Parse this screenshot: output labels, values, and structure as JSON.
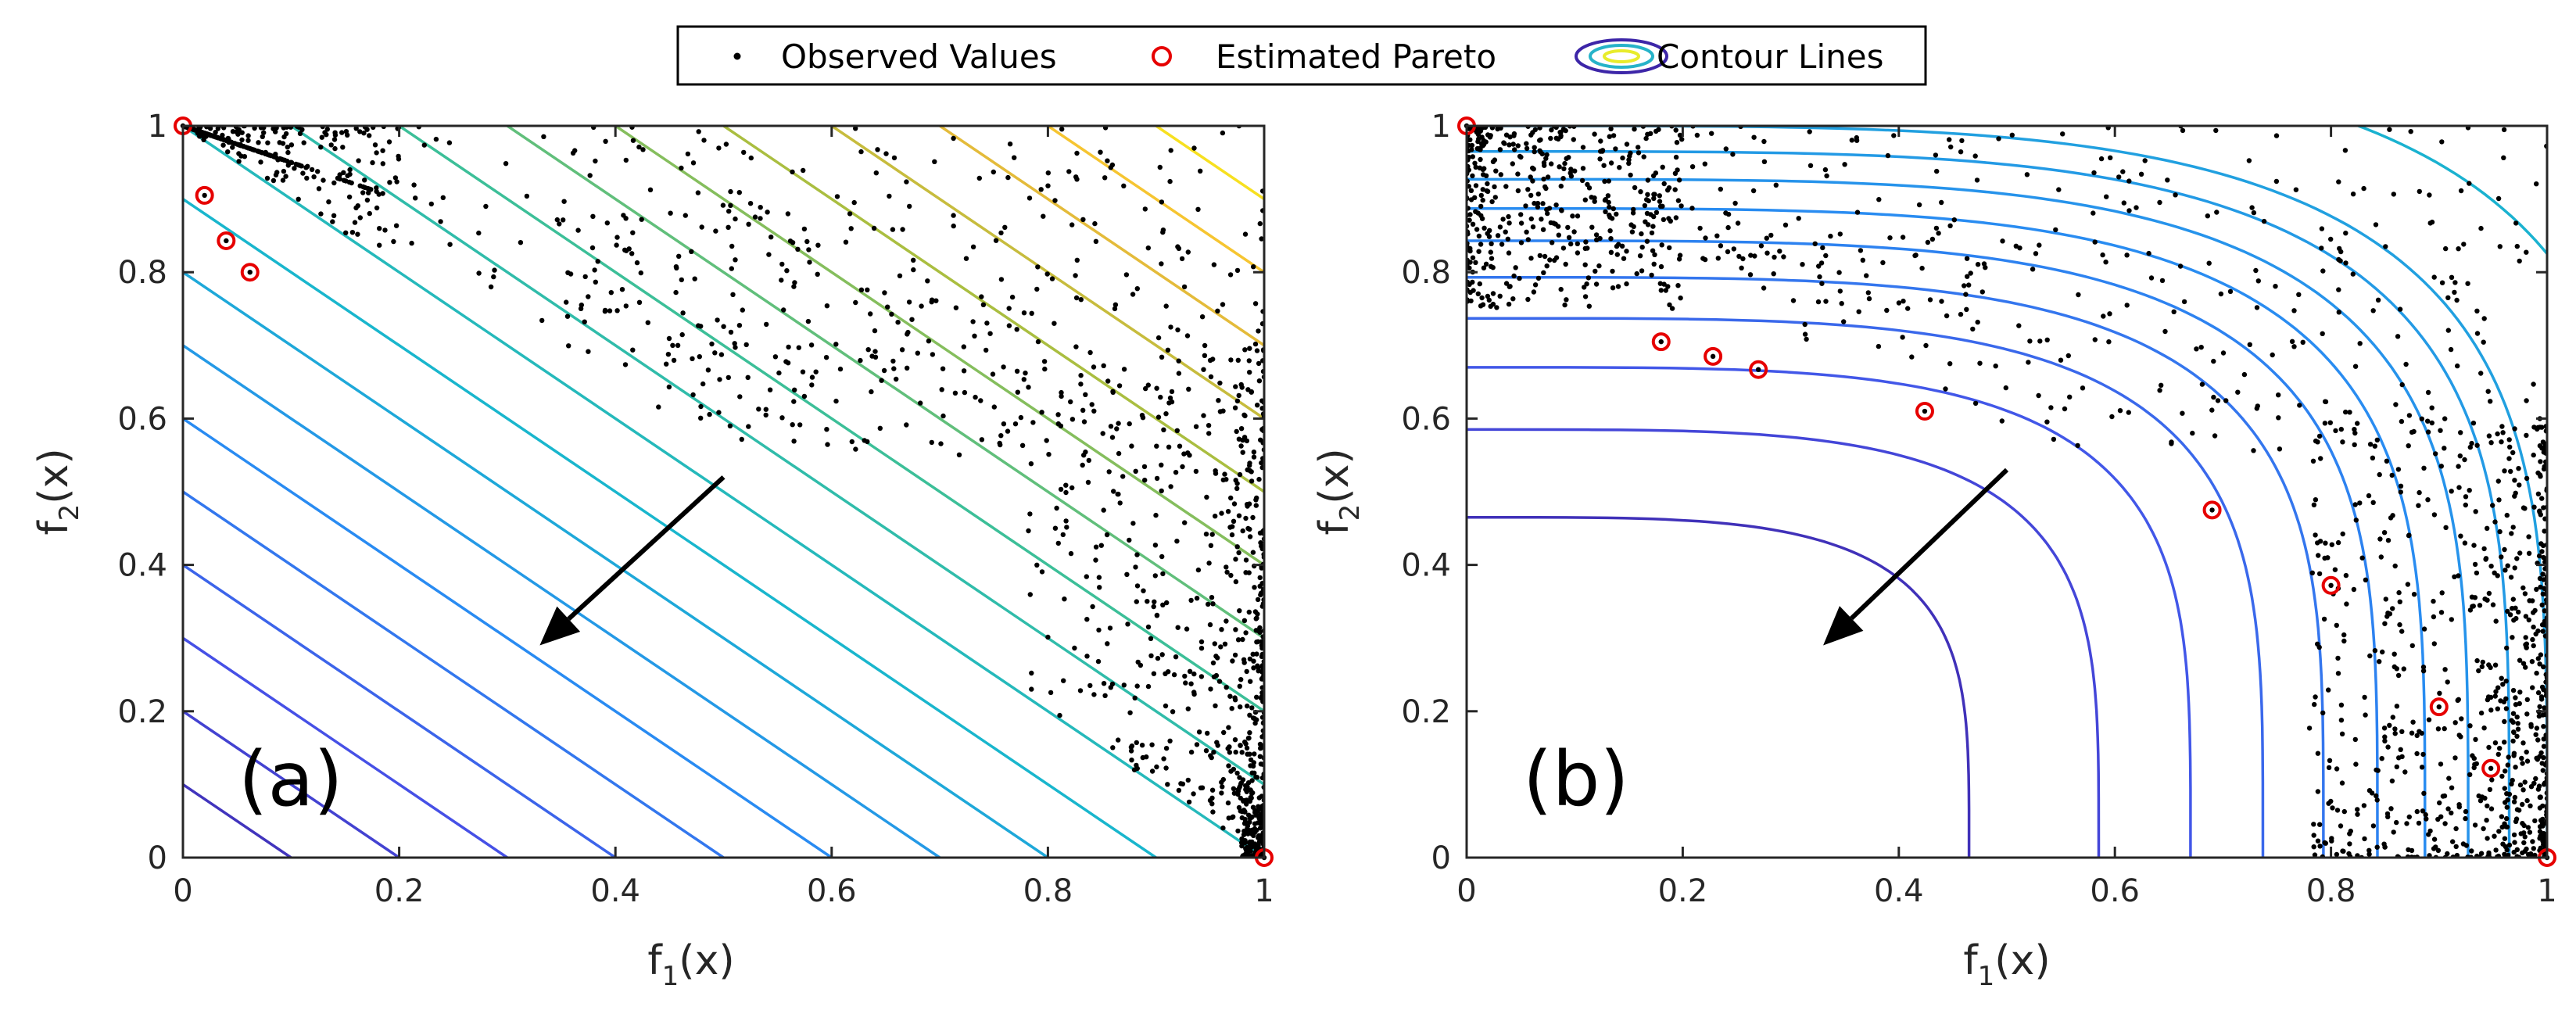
{
  "legend": {
    "observed": "Observed Values",
    "pareto": "Estimated Pareto",
    "contour": "Contour Lines"
  },
  "colors": {
    "observed": "#000000",
    "pareto": "#e60000",
    "contour_low": "#3d26a8",
    "contour_high": "#f9fb0e",
    "axis": "#262626"
  },
  "chart_data": [
    {
      "type": "scatter",
      "panel_label": "(a)",
      "xlabel_main": "f",
      "xlabel_sub": "1",
      "xlabel_tail": "(x)",
      "ylabel_main": "f",
      "ylabel_sub": "2",
      "ylabel_tail": "(x)",
      "xlim": [
        0,
        1
      ],
      "ylim": [
        0,
        1
      ],
      "xticks": [
        "0",
        "0.2",
        "0.4",
        "0.6",
        "0.8",
        "1"
      ],
      "yticks": [
        "0",
        "0.2",
        "0.4",
        "0.6",
        "0.8",
        "1"
      ],
      "contour_kind": "linear",
      "contour_levels": [
        0.1,
        0.2,
        0.3,
        0.4,
        0.5,
        0.6,
        0.7,
        0.8,
        0.9,
        1.0,
        1.1,
        1.2,
        1.3,
        1.4,
        1.5,
        1.6,
        1.7,
        1.8,
        1.9
      ],
      "contour_range": [
        0,
        2
      ],
      "pareto_points": [
        [
          0.0,
          1.0
        ],
        [
          0.02,
          0.905
        ],
        [
          0.04,
          0.843
        ],
        [
          0.062,
          0.8
        ],
        [
          1.0,
          0.0
        ]
      ],
      "arrow": {
        "from": [
          0.5,
          0.52
        ],
        "to": [
          0.33,
          0.29
        ]
      }
    },
    {
      "type": "scatter",
      "panel_label": "(b)",
      "xlabel_main": "f",
      "xlabel_sub": "1",
      "xlabel_tail": "(x)",
      "ylabel_main": "f",
      "ylabel_sub": "2",
      "ylabel_tail": "(x)",
      "xlim": [
        0,
        1
      ],
      "ylim": [
        0,
        1
      ],
      "xticks": [
        "0",
        "0.2",
        "0.4",
        "0.6",
        "0.8",
        "1"
      ],
      "yticks": [
        "0",
        "0.2",
        "0.4",
        "0.6",
        "0.8",
        "1"
      ],
      "contour_kind": "superellipse",
      "contour_levels": [
        0.465,
        0.585,
        0.67,
        0.737,
        0.793,
        0.843,
        0.887,
        0.927,
        0.965,
        1.0,
        1.1,
        1.2,
        1.3,
        1.4,
        1.5,
        1.6,
        1.7,
        1.8,
        1.9
      ],
      "contour_range": [
        0.4,
        2
      ],
      "pareto_points": [
        [
          0.0,
          1.0
        ],
        [
          0.18,
          0.705
        ],
        [
          0.228,
          0.685
        ],
        [
          0.27,
          0.667
        ],
        [
          0.424,
          0.61
        ],
        [
          0.69,
          0.475
        ],
        [
          0.8,
          0.372
        ],
        [
          0.9,
          0.206
        ],
        [
          0.948,
          0.122
        ],
        [
          1.0,
          0.0
        ]
      ],
      "arrow": {
        "from": [
          0.5,
          0.53
        ],
        "to": [
          0.33,
          0.29
        ]
      }
    }
  ]
}
